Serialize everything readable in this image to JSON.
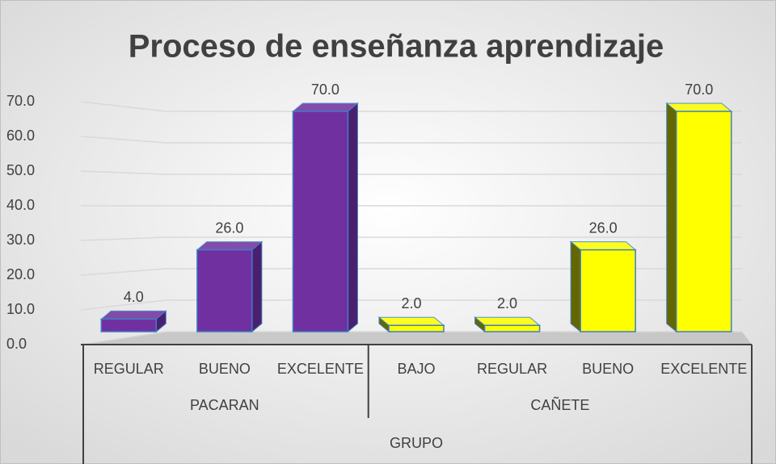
{
  "chart_data": {
    "type": "bar3d",
    "title": "Proceso de enseñanza aprendizaje",
    "x_label": "GRUPO",
    "groups": [
      {
        "name": "PACARAN",
        "color": "#7030a0",
        "side_color": "#4b1f6e",
        "categories": [
          "REGULAR",
          "BUENO",
          "EXCELENTE"
        ],
        "values": [
          4,
          26,
          70
        ],
        "value_labels": [
          "4.0",
          "26.0",
          "70.0"
        ]
      },
      {
        "name": "CAÑETE",
        "color": "#ffff00",
        "side_color": "#666600",
        "categories": [
          "BAJO",
          "REGULAR",
          "BUENO",
          "EXCELENTE"
        ],
        "values": [
          2,
          2,
          26,
          70
        ],
        "value_labels": [
          "2.0",
          "2.0",
          "26.0",
          "70.0"
        ]
      }
    ],
    "ylim": [
      0,
      70
    ],
    "yticks": [
      {
        "value": 0,
        "label": "0.0"
      },
      {
        "value": 10,
        "label": "10.0"
      },
      {
        "value": 20,
        "label": "20.0"
      },
      {
        "value": 30,
        "label": "30.0"
      },
      {
        "value": 40,
        "label": "40.0"
      },
      {
        "value": 50,
        "label": "50.0"
      },
      {
        "value": 60,
        "label": "60.0"
      },
      {
        "value": 70,
        "label": "70.0"
      }
    ],
    "grid": true
  }
}
